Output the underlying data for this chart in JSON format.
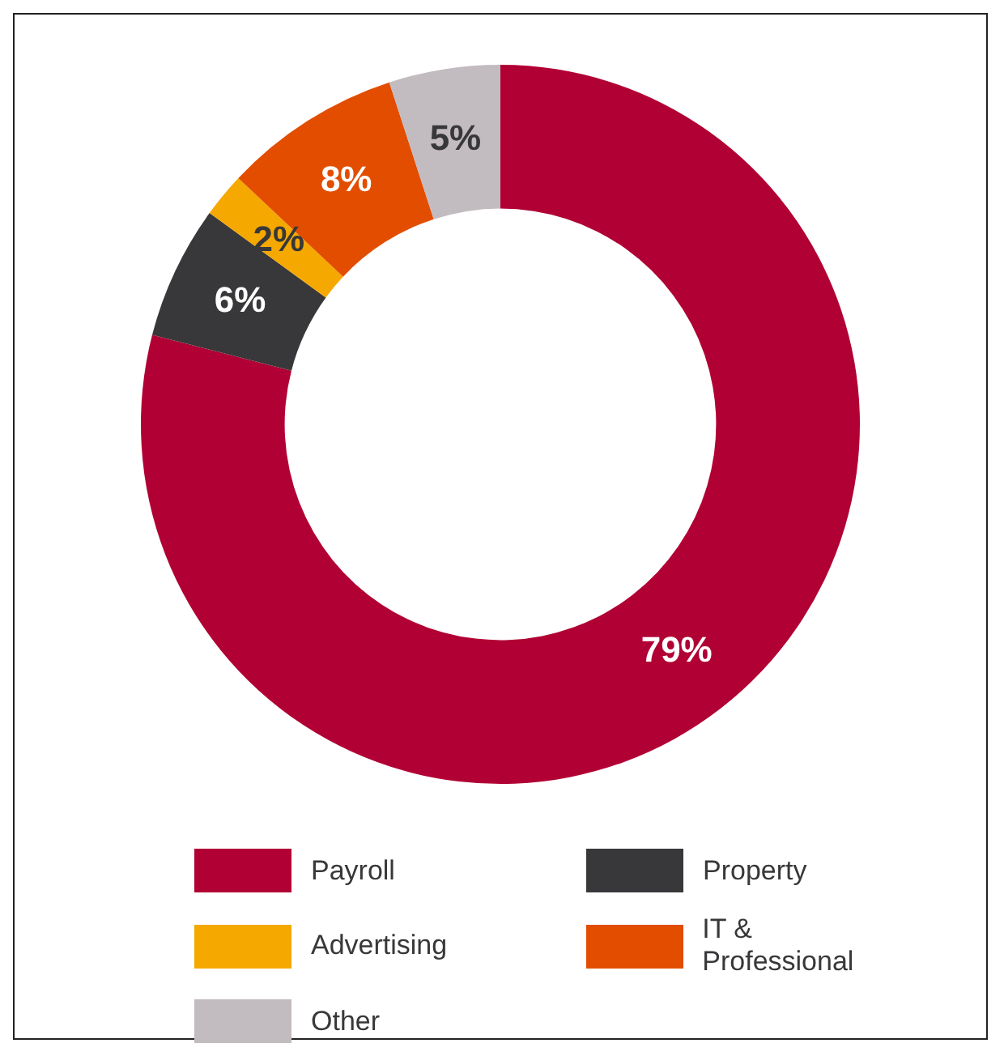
{
  "chart_data": {
    "type": "donut",
    "categories": [
      "Payroll",
      "Property",
      "Advertising",
      "IT & Professional",
      "Other"
    ],
    "values": [
      79,
      6,
      2,
      8,
      5
    ],
    "value_labels": [
      "79%",
      "6%",
      "2%",
      "8%",
      "5%"
    ],
    "colors": [
      "#b10034",
      "#38383a",
      "#f5a800",
      "#e24d00",
      "#c2bbbf"
    ],
    "legend": "bottom"
  }
}
